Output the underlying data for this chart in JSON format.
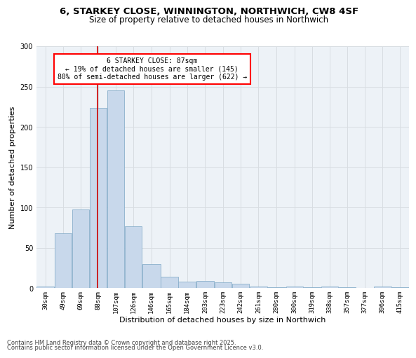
{
  "title_line1": "6, STARKEY CLOSE, WINNINGTON, NORTHWICH, CW8 4SF",
  "title_line2": "Size of property relative to detached houses in Northwich",
  "xlabel": "Distribution of detached houses by size in Northwich",
  "ylabel": "Number of detached properties",
  "footnote1": "Contains HM Land Registry data © Crown copyright and database right 2025.",
  "footnote2": "Contains public sector information licensed under the Open Government Licence v3.0.",
  "annotation_title": "6 STARKEY CLOSE: 87sqm",
  "annotation_line2": "← 19% of detached houses are smaller (145)",
  "annotation_line3": "80% of semi-detached houses are larger (622) →",
  "property_size": 87,
  "bar_color": "#c8d8eb",
  "bar_edge_color": "#8ab0cc",
  "vline_color": "#cc0000",
  "grid_color": "#d8dde2",
  "bg_color": "#edf2f7",
  "categories": [
    "30sqm",
    "49sqm",
    "69sqm",
    "88sqm",
    "107sqm",
    "126sqm",
    "146sqm",
    "165sqm",
    "184sqm",
    "203sqm",
    "223sqm",
    "242sqm",
    "261sqm",
    "280sqm",
    "300sqm",
    "319sqm",
    "338sqm",
    "357sqm",
    "377sqm",
    "396sqm",
    "415sqm"
  ],
  "values": [
    2,
    68,
    98,
    224,
    245,
    77,
    30,
    14,
    8,
    9,
    7,
    6,
    2,
    1,
    2,
    1,
    2,
    1,
    0,
    2,
    1
  ],
  "bin_edges": [
    21.5,
    40.5,
    59.5,
    78.5,
    97.5,
    116.5,
    135.5,
    155.5,
    174.5,
    193.5,
    213.5,
    232.5,
    251.5,
    270.5,
    290.5,
    309.5,
    328.5,
    347.5,
    366.5,
    385.5,
    404.5,
    423.5
  ],
  "xlim": [
    21.5,
    423.5
  ],
  "ylim": [
    0,
    300
  ],
  "yticks": [
    0,
    50,
    100,
    150,
    200,
    250,
    300
  ],
  "title1_fontsize": 9.5,
  "title2_fontsize": 8.5,
  "xlabel_fontsize": 8,
  "ylabel_fontsize": 8,
  "tick_fontsize": 6.5,
  "footnote_fontsize": 6,
  "annotation_fontsize": 7
}
